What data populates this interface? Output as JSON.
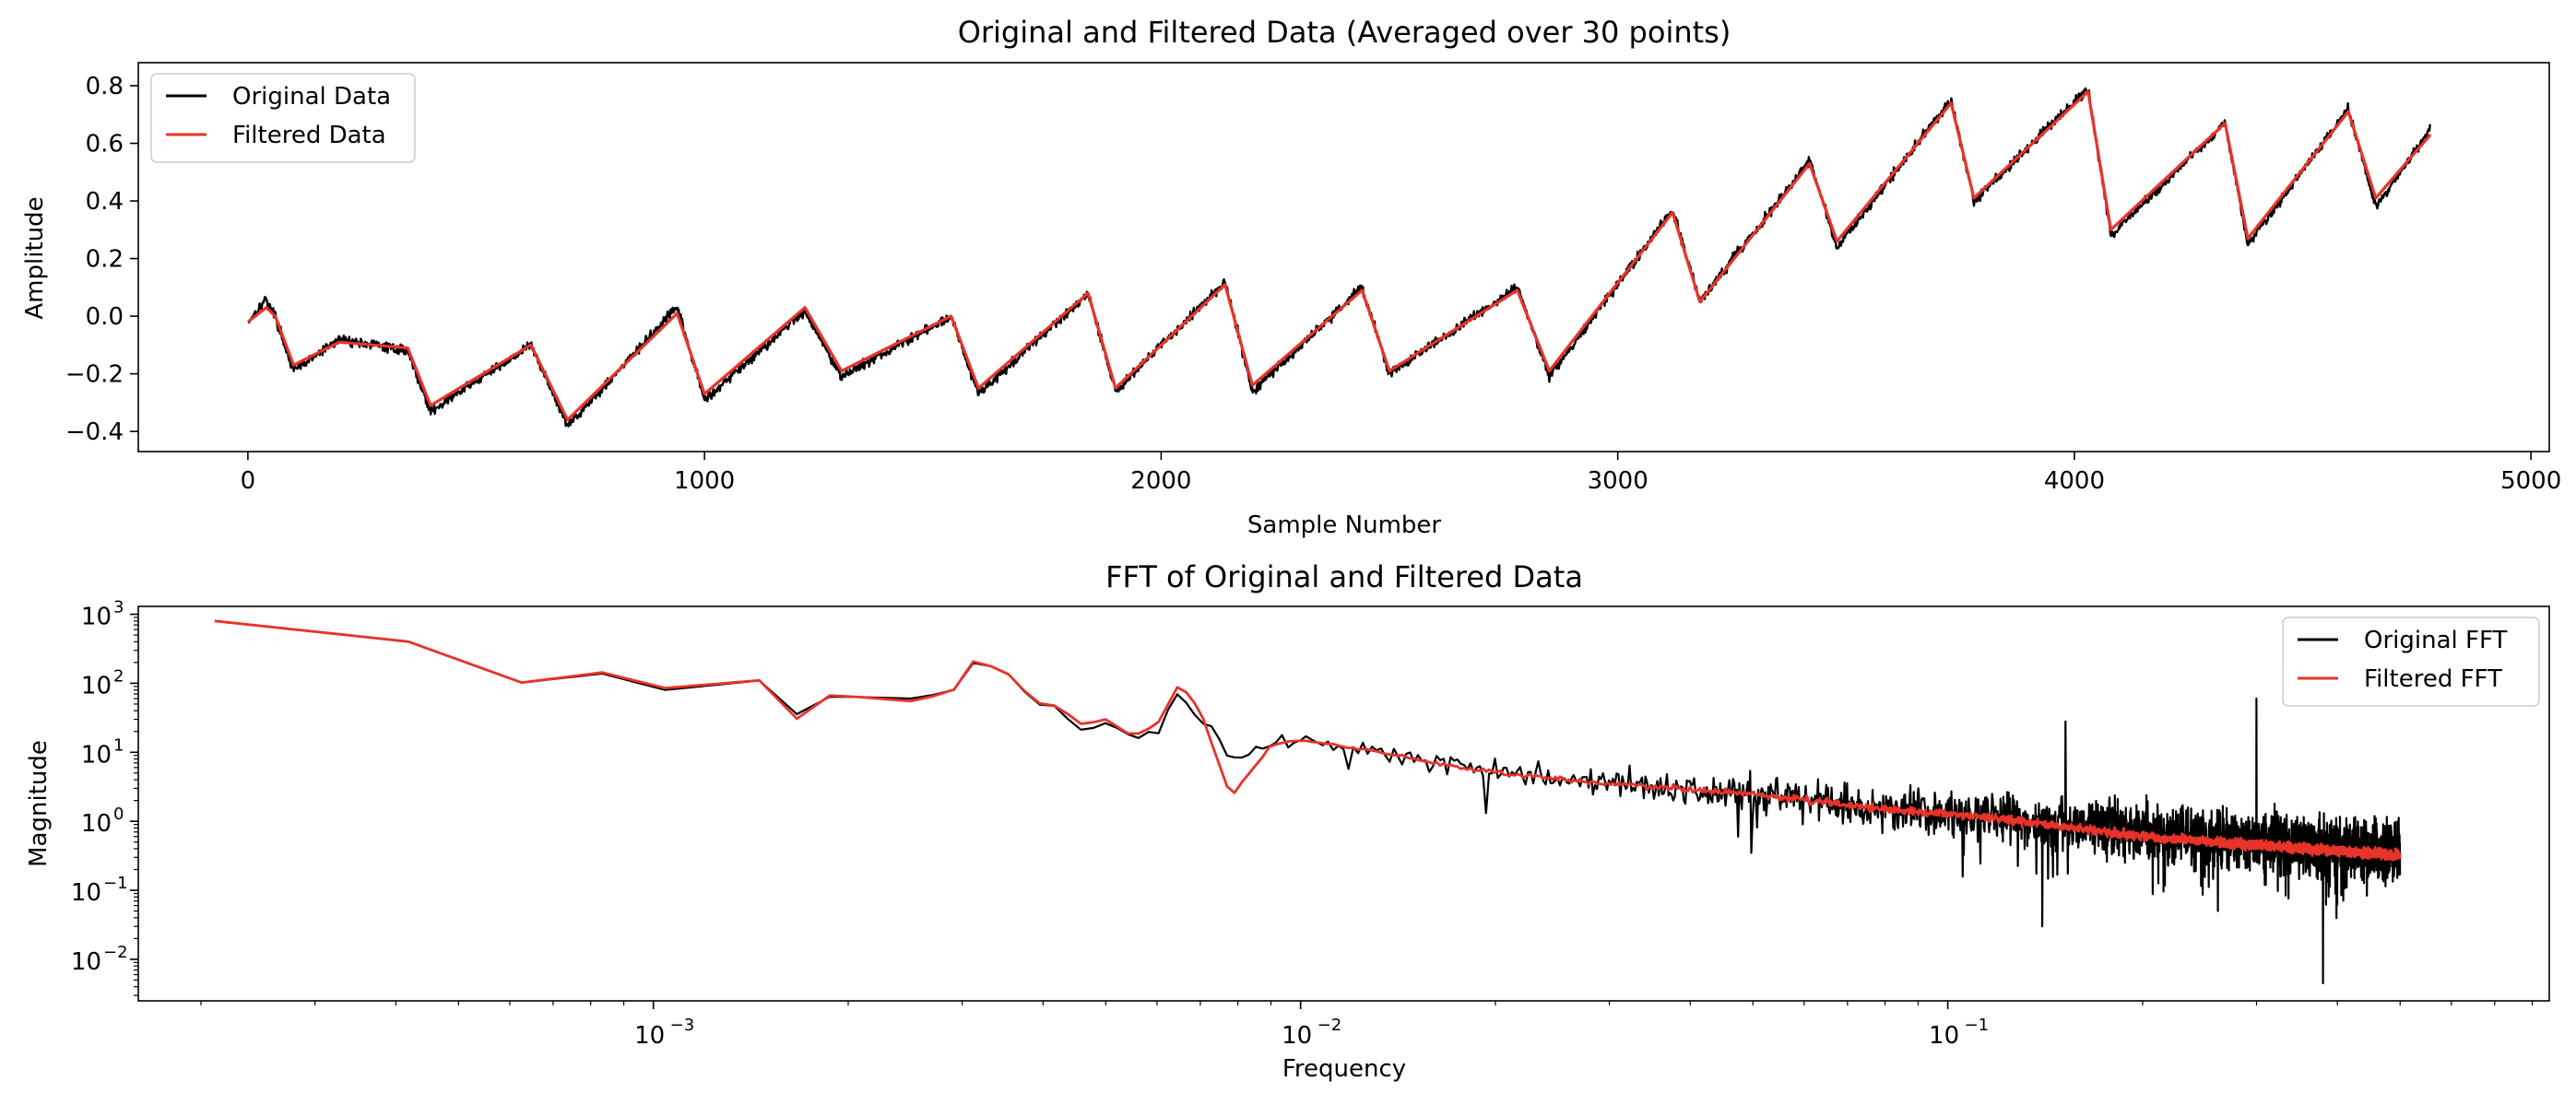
{
  "chart_data": [
    {
      "type": "line",
      "title": "Original and Filtered Data (Averaged over 30 points)",
      "xlabel": "Sample Number",
      "ylabel": "Amplitude",
      "xlim": [
        -240,
        5040
      ],
      "ylim": [
        -0.47,
        0.88
      ],
      "xticks": [
        0,
        1000,
        2000,
        3000,
        4000,
        5000
      ],
      "xtick_labels": [
        "0",
        "1000",
        "2000",
        "3000",
        "4000",
        "5000"
      ],
      "yticks": [
        -0.4,
        -0.2,
        0.0,
        0.2,
        0.4,
        0.6,
        0.8
      ],
      "ytick_labels": [
        "−0.4",
        "−0.2",
        "0.0",
        "0.2",
        "0.4",
        "0.6",
        "0.8"
      ],
      "grid": false,
      "legend": "upper left",
      "series": [
        {
          "name": "Original Data",
          "color": "#000000",
          "noise": 0.025,
          "x": [
            0,
            40,
            60,
            100,
            200,
            350,
            400,
            620,
            700,
            940,
            1000,
            1220,
            1300,
            1540,
            1600,
            1840,
            1900,
            2140,
            2200,
            2440,
            2500,
            2780,
            2850,
            3120,
            3180,
            3420,
            3480,
            3730,
            3780,
            4030,
            4080,
            4330,
            4380,
            4600,
            4660,
            4780
          ],
          "y": [
            -0.02,
            0.06,
            0.0,
            -0.19,
            -0.08,
            -0.12,
            -0.33,
            -0.1,
            -0.38,
            0.03,
            -0.29,
            0.02,
            -0.21,
            0.0,
            -0.27,
            0.08,
            -0.26,
            0.12,
            -0.26,
            0.1,
            -0.2,
            0.1,
            -0.21,
            0.37,
            0.05,
            0.54,
            0.24,
            0.75,
            0.4,
            0.79,
            0.28,
            0.67,
            0.25,
            0.72,
            0.38,
            0.65
          ]
        },
        {
          "name": "Filtered Data",
          "color": "#e8332a",
          "x": [
            0,
            40,
            60,
            100,
            200,
            350,
            400,
            620,
            700,
            940,
            1000,
            1220,
            1300,
            1540,
            1600,
            1840,
            1900,
            2140,
            2200,
            2440,
            2500,
            2780,
            2850,
            3120,
            3180,
            3420,
            3480,
            3730,
            3780,
            4030,
            4080,
            4330,
            4380,
            4600,
            4660,
            4780
          ],
          "y": [
            -0.02,
            0.03,
            0.0,
            -0.17,
            -0.09,
            -0.11,
            -0.31,
            -0.1,
            -0.36,
            0.01,
            -0.27,
            0.03,
            -0.19,
            0.0,
            -0.25,
            0.08,
            -0.25,
            0.11,
            -0.24,
            0.09,
            -0.19,
            0.09,
            -0.19,
            0.36,
            0.05,
            0.53,
            0.26,
            0.74,
            0.41,
            0.78,
            0.3,
            0.67,
            0.27,
            0.71,
            0.41,
            0.63
          ]
        }
      ]
    },
    {
      "type": "line",
      "title": "FFT of Original and Filtered Data",
      "xlabel": "Frequency",
      "ylabel": "Magnitude",
      "xscale": "log",
      "yscale": "log",
      "xlim": [
        0.00016,
        0.85
      ],
      "ylim": [
        0.0025,
        1300
      ],
      "xticks": [
        0.001,
        0.01,
        0.1
      ],
      "xtick_labels": [
        "10",
        "10",
        "10"
      ],
      "xtick_exponents": [
        "−3",
        "−2",
        "−1"
      ],
      "yticks": [
        0.01,
        0.1,
        1,
        10,
        100,
        1000
      ],
      "ytick_labels": [
        "10",
        "10",
        "10",
        "10",
        "10",
        "10"
      ],
      "ytick_exponents": [
        "−2",
        "−1",
        "0",
        "1",
        "2",
        "3"
      ],
      "grid": false,
      "legend": "upper right",
      "series": [
        {
          "name": "Original FFT",
          "color": "#000000",
          "x": [
            0.00021,
            0.00042,
            0.00063,
            0.00083,
            0.00104,
            0.00146,
            0.00167,
            0.00188,
            0.0025,
            0.0029,
            0.0031,
            0.0033,
            0.0035,
            0.0039,
            0.0042,
            0.0046,
            0.005,
            0.0055,
            0.006,
            0.0065,
            0.007,
            0.0078,
            0.009,
            0.01,
            0.012,
            0.015,
            0.02,
            0.03,
            0.05,
            0.08,
            0.12,
            0.2,
            0.3,
            0.5
          ],
          "y": [
            800,
            400,
            100,
            140,
            80,
            110,
            35,
            65,
            60,
            75,
            200,
            180,
            150,
            50,
            45,
            20,
            28,
            15,
            20,
            80,
            30,
            9,
            13,
            17,
            10,
            8,
            5,
            3.5,
            2.5,
            1.6,
            1.1,
            0.7,
            0.5,
            0.35
          ],
          "noise_from": 0.004,
          "spikes": [
            {
              "x": 0.152,
              "y": 28
            },
            {
              "x": 0.3,
              "y": 60
            },
            {
              "x": 0.38,
              "y": 0.0045
            },
            {
              "x": 0.14,
              "y": 0.03
            }
          ]
        },
        {
          "name": "Filtered FFT",
          "color": "#e8332a",
          "x": [
            0.00021,
            0.00042,
            0.00063,
            0.00083,
            0.00104,
            0.00146,
            0.00167,
            0.00188,
            0.0025,
            0.0029,
            0.0031,
            0.0033,
            0.0035,
            0.0039,
            0.0042,
            0.0046,
            0.005,
            0.0055,
            0.006,
            0.0065,
            0.007,
            0.0078,
            0.009,
            0.01,
            0.012,
            0.015,
            0.02,
            0.03,
            0.05,
            0.08,
            0.12,
            0.2,
            0.3,
            0.5
          ],
          "y": [
            800,
            400,
            100,
            145,
            85,
            110,
            30,
            68,
            55,
            75,
            210,
            180,
            150,
            52,
            47,
            25,
            30,
            17,
            25,
            100,
            40,
            2.2,
            13,
            15,
            12,
            8,
            5,
            3.5,
            2.5,
            1.5,
            1.1,
            0.6,
            0.45,
            0.32
          ],
          "noise_from": 0.007
        }
      ]
    }
  ]
}
